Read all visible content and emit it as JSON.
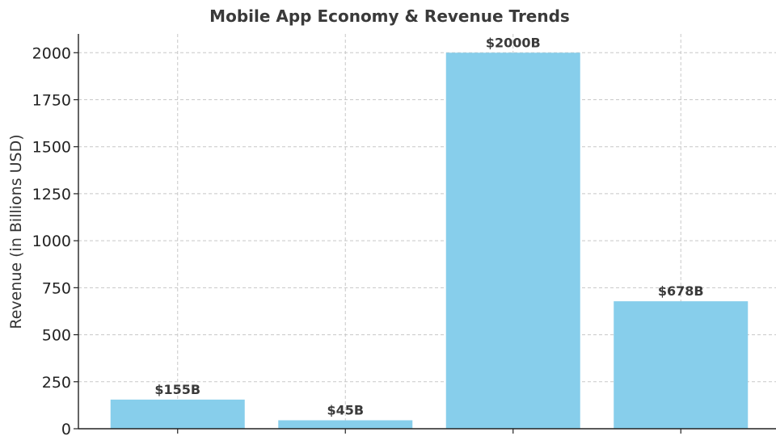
{
  "chart_data": {
    "type": "bar",
    "title": "Mobile App Economy & Revenue Trends",
    "xlabel": "",
    "ylabel": "Revenue (in Billions USD)",
    "categories": [
      "",
      "",
      "",
      ""
    ],
    "values": [
      155,
      45,
      2000,
      678
    ],
    "data_labels": [
      "$155B",
      "$45B",
      "$2000B",
      "$678B"
    ],
    "ylim": [
      0,
      2100
    ],
    "yticks": [
      0,
      250,
      500,
      750,
      1000,
      1250,
      1500,
      1750,
      2000
    ],
    "grid": true,
    "bar_color": "#87CEEB"
  }
}
